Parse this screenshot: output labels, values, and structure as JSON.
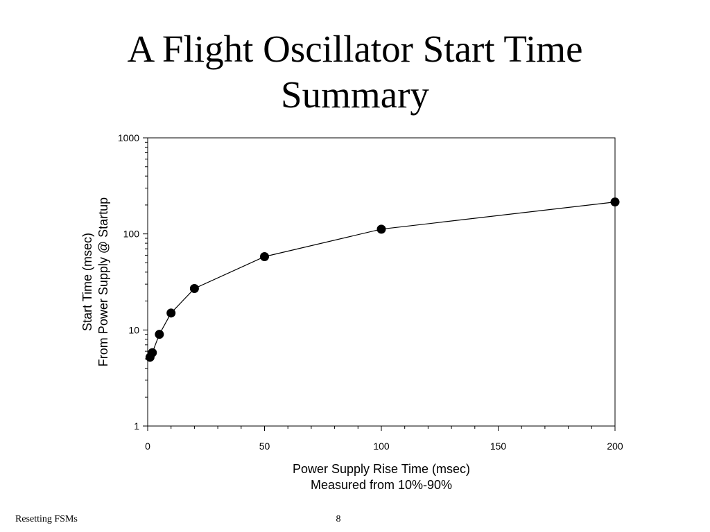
{
  "slide": {
    "title_line1": "A Flight Oscillator Start Time",
    "title_line2": "Summary",
    "footer_left": "Resetting FSMs",
    "page_number": "8"
  },
  "chart_data": {
    "type": "line",
    "xlabel": [
      "Power Supply Rise Time (msec)",
      "Measured from 10%-90%"
    ],
    "ylabel": [
      "Start Time (msec)",
      "From Power Supply @ Startup"
    ],
    "xlim": [
      0,
      200
    ],
    "ylim": [
      1,
      1000
    ],
    "yscale": "log",
    "xticks": [
      0,
      50,
      100,
      150,
      200
    ],
    "yticks": [
      1,
      10,
      100,
      1000
    ],
    "ytick_labels": [
      "1",
      "10",
      "100",
      "1000"
    ],
    "grid": false,
    "marker": "filled-circle",
    "line_color": "#000000",
    "series": [
      {
        "x": [
          1,
          2,
          5,
          10,
          20,
          50,
          100,
          200
        ],
        "y": [
          5.2,
          5.8,
          9,
          15,
          27,
          58,
          112,
          215
        ]
      }
    ]
  }
}
